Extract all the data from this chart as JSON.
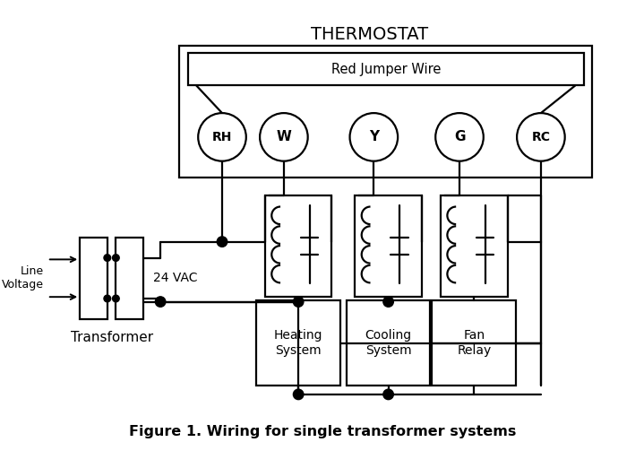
{
  "title": "THERMOSTAT",
  "caption": "Figure 1. Wiring for single transformer systems",
  "jumper_label": "Red Jumper Wire",
  "terminals": [
    "RH",
    "W",
    "Y",
    "G",
    "RC"
  ],
  "bg_color": "#ffffff",
  "line_color": "#000000"
}
